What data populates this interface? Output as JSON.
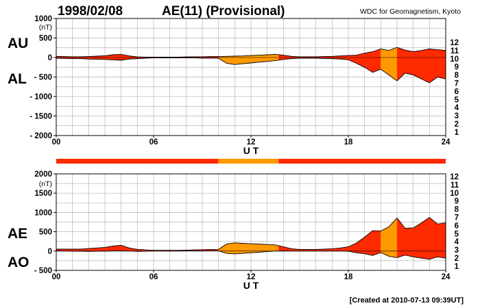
{
  "header": {
    "date": "1998/02/08",
    "title": "AE(11) (Provisional)",
    "source": "WDC for Geomagnetism, Kyoto"
  },
  "footer": {
    "created": "[Created at 2010-07-13 09:39UT]"
  },
  "level_scale": {
    "levels": [
      {
        "label": "12",
        "color": "#ff1493"
      },
      {
        "label": "11",
        "color": "#ff2a00"
      },
      {
        "label": "10",
        "color": "#ff9900"
      },
      {
        "label": "9",
        "color": "#e8e800"
      },
      {
        "label": "8",
        "color": "#99ff33"
      },
      {
        "label": "7",
        "color": "#00e5ff"
      },
      {
        "label": "6",
        "color": "#1e6bff"
      },
      {
        "label": "5",
        "color": "#2b1fb5"
      },
      {
        "label": "4",
        "color": "#cc00cc"
      },
      {
        "label": "3",
        "color": "#222222"
      },
      {
        "label": "2",
        "color": "#777777"
      },
      {
        "label": "1",
        "color": "#cccccc"
      }
    ]
  },
  "station_bar": {
    "segments": [
      {
        "from": 0,
        "to": 10,
        "level": "11"
      },
      {
        "from": 10,
        "to": 13.7,
        "level": "10"
      },
      {
        "from": 13.7,
        "to": 24,
        "level": "11"
      }
    ]
  },
  "chart_data": [
    {
      "type": "area",
      "left_labels": [
        "AU",
        "AL"
      ],
      "xlabel": "U T",
      "x_ticks": [
        0,
        6,
        12,
        18,
        24
      ],
      "x_tick_labels": [
        "00",
        "06",
        "12",
        "18",
        "24"
      ],
      "xlim": [
        0,
        24
      ],
      "ylim": [
        -2000,
        1000
      ],
      "y_ticks": [
        1000,
        500,
        0,
        -500,
        -1000,
        -1500,
        -2000
      ],
      "y_tick_labels": [
        "1000",
        "500",
        "0",
        "- 500",
        "- 1000",
        "- 1500",
        "- 2000"
      ],
      "y_unit": "(nT)",
      "grid": true,
      "series": [
        {
          "name": "AU",
          "x": [
            0,
            0.5,
            1,
            1.5,
            2,
            2.5,
            3,
            3.5,
            4,
            4.5,
            5,
            5.5,
            6,
            6.5,
            7,
            7.5,
            8,
            8.5,
            9,
            9.5,
            10,
            10.5,
            11,
            11.5,
            12,
            12.5,
            13,
            13.5,
            14,
            14.5,
            15,
            15.5,
            16,
            16.5,
            17,
            17.5,
            18,
            18.5,
            19,
            19.5,
            20,
            20.5,
            21,
            21.5,
            22,
            22.5,
            23,
            23.5,
            24
          ],
          "values": [
            30,
            25,
            20,
            20,
            25,
            35,
            45,
            70,
            80,
            40,
            15,
            10,
            10,
            10,
            10,
            10,
            15,
            20,
            20,
            25,
            25,
            30,
            35,
            40,
            50,
            60,
            70,
            80,
            60,
            30,
            20,
            20,
            20,
            25,
            30,
            40,
            50,
            60,
            110,
            150,
            220,
            180,
            260,
            190,
            150,
            180,
            220,
            200,
            180
          ]
        },
        {
          "name": "AL",
          "x": [
            0,
            0.5,
            1,
            1.5,
            2,
            2.5,
            3,
            3.5,
            4,
            4.5,
            5,
            5.5,
            6,
            6.5,
            7,
            7.5,
            8,
            8.5,
            9,
            9.5,
            10,
            10.5,
            11,
            11.5,
            12,
            12.5,
            13,
            13.5,
            14,
            14.5,
            15,
            15.5,
            16,
            16.5,
            17,
            17.5,
            18,
            18.5,
            19,
            19.5,
            20,
            20.5,
            21,
            21.5,
            22,
            22.5,
            23,
            23.5,
            24
          ],
          "values": [
            -20,
            -25,
            -30,
            -30,
            -40,
            -45,
            -50,
            -60,
            -70,
            -40,
            -30,
            -20,
            -10,
            -10,
            -10,
            -10,
            -10,
            -10,
            -15,
            -15,
            -20,
            -150,
            -180,
            -160,
            -140,
            -120,
            -100,
            -80,
            -50,
            -30,
            -20,
            -20,
            -20,
            -25,
            -30,
            -40,
            -60,
            -150,
            -250,
            -380,
            -300,
            -450,
            -600,
            -400,
            -450,
            -550,
            -650,
            -500,
            -550
          ]
        }
      ],
      "fill_segments": [
        {
          "from": 0,
          "to": 10,
          "level": "11"
        },
        {
          "from": 10,
          "to": 13.7,
          "level": "10"
        },
        {
          "from": 13.7,
          "to": 20,
          "level": "11"
        },
        {
          "from": 20,
          "to": 21,
          "level": "10"
        },
        {
          "from": 21,
          "to": 24,
          "level": "11"
        }
      ]
    },
    {
      "type": "area",
      "left_labels": [
        "AE",
        "AO"
      ],
      "xlabel": "U T",
      "x_ticks": [
        0,
        6,
        12,
        18,
        24
      ],
      "x_tick_labels": [
        "00",
        "06",
        "12",
        "18",
        "24"
      ],
      "xlim": [
        0,
        24
      ],
      "ylim": [
        -500,
        2000
      ],
      "y_ticks": [
        2000,
        1500,
        1000,
        500,
        0,
        -500
      ],
      "y_tick_labels": [
        "2000",
        "1500",
        "1000",
        "500",
        "0",
        "- 500"
      ],
      "y_unit": "(nT)",
      "grid": true,
      "series": [
        {
          "name": "AE",
          "x": [
            0,
            0.5,
            1,
            1.5,
            2,
            2.5,
            3,
            3.5,
            4,
            4.5,
            5,
            5.5,
            6,
            6.5,
            7,
            7.5,
            8,
            8.5,
            9,
            9.5,
            10,
            10.5,
            11,
            11.5,
            12,
            12.5,
            13,
            13.5,
            14,
            14.5,
            15,
            15.5,
            16,
            16.5,
            17,
            17.5,
            18,
            18.5,
            19,
            19.5,
            20,
            20.5,
            21,
            21.5,
            22,
            22.5,
            23,
            23.5,
            24
          ],
          "values": [
            50,
            50,
            50,
            50,
            65,
            80,
            95,
            130,
            150,
            80,
            45,
            30,
            20,
            20,
            20,
            20,
            25,
            30,
            35,
            40,
            45,
            180,
            215,
            200,
            190,
            180,
            170,
            160,
            110,
            60,
            40,
            40,
            40,
            50,
            60,
            80,
            110,
            210,
            360,
            530,
            520,
            630,
            860,
            590,
            600,
            730,
            870,
            700,
            730
          ]
        },
        {
          "name": "AO",
          "x": [
            0,
            0.5,
            1,
            1.5,
            2,
            2.5,
            3,
            3.5,
            4,
            4.5,
            5,
            5.5,
            6,
            6.5,
            7,
            7.5,
            8,
            8.5,
            9,
            9.5,
            10,
            10.5,
            11,
            11.5,
            12,
            12.5,
            13,
            13.5,
            14,
            14.5,
            15,
            15.5,
            16,
            16.5,
            17,
            17.5,
            18,
            18.5,
            19,
            19.5,
            20,
            20.5,
            21,
            21.5,
            22,
            22.5,
            23,
            23.5,
            24
          ],
          "values": [
            5,
            0,
            -5,
            -5,
            -8,
            -5,
            -3,
            5,
            5,
            0,
            -8,
            -5,
            0,
            0,
            0,
            0,
            3,
            5,
            3,
            5,
            3,
            -60,
            -73,
            -60,
            -45,
            -30,
            -15,
            0,
            5,
            0,
            0,
            0,
            0,
            0,
            0,
            0,
            -5,
            -45,
            -70,
            -115,
            -40,
            -135,
            -170,
            -105,
            -150,
            -185,
            -215,
            -150,
            -185
          ]
        }
      ],
      "fill_segments": [
        {
          "from": 0,
          "to": 10,
          "level": "11"
        },
        {
          "from": 10,
          "to": 13.7,
          "level": "10"
        },
        {
          "from": 13.7,
          "to": 20,
          "level": "11"
        },
        {
          "from": 20,
          "to": 21,
          "level": "10"
        },
        {
          "from": 21,
          "to": 24,
          "level": "11"
        }
      ]
    }
  ]
}
